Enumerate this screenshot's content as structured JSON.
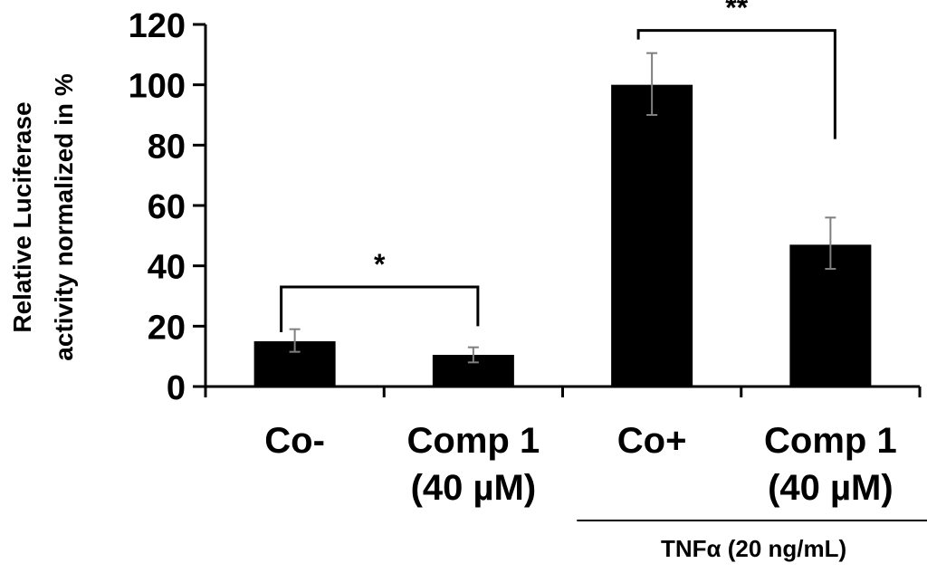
{
  "chart_data": {
    "type": "bar",
    "ylabel_line1": "Relative Luciferase",
    "ylabel_line2": "activity normalized in %",
    "ylim": [
      0,
      120
    ],
    "yticks": [
      "0",
      "20",
      "40",
      "60",
      "80",
      "100",
      "120"
    ],
    "categories": [
      {
        "line1": "Co-",
        "line2": ""
      },
      {
        "line1": "Comp 1",
        "line2": "(40 µM)"
      },
      {
        "line1": "Co+",
        "line2": ""
      },
      {
        "line1": "Comp 1",
        "line2": "(40 µM)"
      }
    ],
    "values": [
      15,
      10.5,
      100,
      47
    ],
    "error_low": [
      11.5,
      8,
      90,
      39
    ],
    "error_high": [
      19,
      13,
      110.5,
      56
    ],
    "bar_color": "#000000",
    "error_color": "#7f7f7f",
    "significance": [
      {
        "label": "*",
        "from": 0,
        "to": 1,
        "level": 33
      },
      {
        "label": "**",
        "from": 2,
        "to": 3,
        "level": 118
      }
    ],
    "group_label": "TNFα (20 ng/mL)",
    "group_categories": [
      2,
      3
    ],
    "grid": false
  }
}
